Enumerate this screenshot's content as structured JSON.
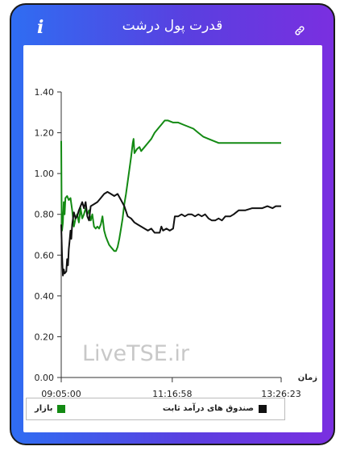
{
  "header": {
    "title": "قدرت پول درشت",
    "info_icon": "i",
    "link_icon": "link-icon"
  },
  "watermark": "LiveTSE.ir",
  "chart_data": {
    "type": "line",
    "title": "",
    "xlabel": "زمان",
    "ylabel": "",
    "ylim": [
      0,
      1.4
    ],
    "y_ticks": [
      "0.00",
      "0.20",
      "0.40",
      "0.60",
      "0.80",
      "1.00",
      "1.20",
      "1.40"
    ],
    "x_range": [
      "09:05:00",
      "13:26:23"
    ],
    "x_ticks": [
      "09:05:00",
      "11:16:58",
      "13:26:23"
    ],
    "grid": false,
    "legend_placement": "bottom",
    "series": [
      {
        "name": "بازار",
        "color": "#138a13",
        "points": [
          [
            "09:05:00",
            1.16
          ],
          [
            "09:05:30",
            0.82
          ],
          [
            "09:06:00",
            0.72
          ],
          [
            "09:07:00",
            0.76
          ],
          [
            "09:08:00",
            0.86
          ],
          [
            "09:09:00",
            0.8
          ],
          [
            "09:10:00",
            0.88
          ],
          [
            "09:12:00",
            0.89
          ],
          [
            "09:14:00",
            0.87
          ],
          [
            "09:16:00",
            0.88
          ],
          [
            "09:18:00",
            0.82
          ],
          [
            "09:20:00",
            0.74
          ],
          [
            "09:22:00",
            0.78
          ],
          [
            "09:24:00",
            0.8
          ],
          [
            "09:26:00",
            0.76
          ],
          [
            "09:28:00",
            0.83
          ],
          [
            "09:30:00",
            0.78
          ],
          [
            "09:32:00",
            0.8
          ],
          [
            "09:34:00",
            0.83
          ],
          [
            "09:36:00",
            0.8
          ],
          [
            "09:38:00",
            0.82
          ],
          [
            "09:40:00",
            0.77
          ],
          [
            "09:42:00",
            0.8
          ],
          [
            "09:44:00",
            0.74
          ],
          [
            "09:46:00",
            0.73
          ],
          [
            "09:48:00",
            0.74
          ],
          [
            "09:50:00",
            0.73
          ],
          [
            "09:52:00",
            0.75
          ],
          [
            "09:54:00",
            0.79
          ],
          [
            "09:56:00",
            0.72
          ],
          [
            "09:58:00",
            0.69
          ],
          [
            "10:00:00",
            0.67
          ],
          [
            "10:02:00",
            0.65
          ],
          [
            "10:04:00",
            0.64
          ],
          [
            "10:06:00",
            0.63
          ],
          [
            "10:08:00",
            0.62
          ],
          [
            "10:10:00",
            0.62
          ],
          [
            "10:12:00",
            0.64
          ],
          [
            "10:14:00",
            0.68
          ],
          [
            "10:16:00",
            0.73
          ],
          [
            "10:18:00",
            0.78
          ],
          [
            "10:20:00",
            0.85
          ],
          [
            "10:22:00",
            0.9
          ],
          [
            "10:24:00",
            0.96
          ],
          [
            "10:26:00",
            1.02
          ],
          [
            "10:28:00",
            1.08
          ],
          [
            "10:30:00",
            1.15
          ],
          [
            "10:31:00",
            1.17
          ],
          [
            "10:32:00",
            1.1
          ],
          [
            "10:35:00",
            1.12
          ],
          [
            "10:38:00",
            1.13
          ],
          [
            "10:40:00",
            1.11
          ],
          [
            "10:44:00",
            1.13
          ],
          [
            "10:48:00",
            1.15
          ],
          [
            "10:52:00",
            1.17
          ],
          [
            "10:56:00",
            1.2
          ],
          [
            "11:00:00",
            1.22
          ],
          [
            "11:04:00",
            1.24
          ],
          [
            "11:08:00",
            1.26
          ],
          [
            "11:12:00",
            1.26
          ],
          [
            "11:18:00",
            1.25
          ],
          [
            "11:24:00",
            1.25
          ],
          [
            "11:30:00",
            1.24
          ],
          [
            "11:36:00",
            1.23
          ],
          [
            "11:42:00",
            1.22
          ],
          [
            "11:48:00",
            1.2
          ],
          [
            "11:54:00",
            1.18
          ],
          [
            "12:00:00",
            1.17
          ],
          [
            "12:06:00",
            1.16
          ],
          [
            "12:12:00",
            1.15
          ],
          [
            "12:20:00",
            1.15
          ],
          [
            "12:40:00",
            1.15
          ],
          [
            "13:00:00",
            1.15
          ],
          [
            "13:26:23",
            1.15
          ]
        ]
      },
      {
        "name": "صندوق های درآمد ثابت",
        "color": "#111111",
        "points": [
          [
            "09:05:00",
            0.75
          ],
          [
            "09:06:00",
            0.6
          ],
          [
            "09:07:00",
            0.5
          ],
          [
            "09:08:00",
            0.53
          ],
          [
            "09:09:00",
            0.51
          ],
          [
            "09:11:00",
            0.52
          ],
          [
            "09:12:00",
            0.58
          ],
          [
            "09:13:00",
            0.55
          ],
          [
            "09:14:00",
            0.63
          ],
          [
            "09:15:00",
            0.67
          ],
          [
            "09:16:00",
            0.72
          ],
          [
            "09:17:00",
            0.68
          ],
          [
            "09:18:00",
            0.75
          ],
          [
            "09:20:00",
            0.81
          ],
          [
            "09:22:00",
            0.78
          ],
          [
            "09:24:00",
            0.79
          ],
          [
            "09:26:00",
            0.82
          ],
          [
            "09:28:00",
            0.84
          ],
          [
            "09:30:00",
            0.86
          ],
          [
            "09:32:00",
            0.83
          ],
          [
            "09:34:00",
            0.86
          ],
          [
            "09:36:00",
            0.79
          ],
          [
            "09:38:00",
            0.77
          ],
          [
            "09:40:00",
            0.84
          ],
          [
            "09:44:00",
            0.85
          ],
          [
            "09:48:00",
            0.86
          ],
          [
            "09:52:00",
            0.88
          ],
          [
            "09:56:00",
            0.9
          ],
          [
            "10:00:00",
            0.91
          ],
          [
            "10:04:00",
            0.9
          ],
          [
            "10:08:00",
            0.89
          ],
          [
            "10:12:00",
            0.9
          ],
          [
            "10:16:00",
            0.87
          ],
          [
            "10:20:00",
            0.84
          ],
          [
            "10:24:00",
            0.79
          ],
          [
            "10:28:00",
            0.78
          ],
          [
            "10:32:00",
            0.76
          ],
          [
            "10:36:00",
            0.75
          ],
          [
            "10:40:00",
            0.74
          ],
          [
            "10:44:00",
            0.73
          ],
          [
            "10:48:00",
            0.72
          ],
          [
            "10:52:00",
            0.73
          ],
          [
            "10:56:00",
            0.71
          ],
          [
            "11:00:00",
            0.71
          ],
          [
            "11:02:00",
            0.71
          ],
          [
            "11:04:00",
            0.74
          ],
          [
            "11:06:00",
            0.72
          ],
          [
            "11:10:00",
            0.73
          ],
          [
            "11:14:00",
            0.72
          ],
          [
            "11:18:00",
            0.73
          ],
          [
            "11:20:00",
            0.79
          ],
          [
            "11:24:00",
            0.79
          ],
          [
            "11:28:00",
            0.8
          ],
          [
            "11:32:00",
            0.79
          ],
          [
            "11:36:00",
            0.8
          ],
          [
            "11:40:00",
            0.8
          ],
          [
            "11:44:00",
            0.79
          ],
          [
            "11:48:00",
            0.8
          ],
          [
            "11:52:00",
            0.79
          ],
          [
            "11:56:00",
            0.8
          ],
          [
            "12:00:00",
            0.78
          ],
          [
            "12:04:00",
            0.77
          ],
          [
            "12:08:00",
            0.77
          ],
          [
            "12:12:00",
            0.78
          ],
          [
            "12:16:00",
            0.77
          ],
          [
            "12:20:00",
            0.79
          ],
          [
            "12:26:00",
            0.79
          ],
          [
            "12:30:00",
            0.8
          ],
          [
            "12:36:00",
            0.82
          ],
          [
            "12:44:00",
            0.82
          ],
          [
            "12:52:00",
            0.83
          ],
          [
            "13:04:00",
            0.83
          ],
          [
            "13:10:00",
            0.84
          ],
          [
            "13:16:00",
            0.83
          ],
          [
            "13:20:00",
            0.84
          ],
          [
            "13:26:23",
            0.84
          ]
        ]
      }
    ]
  }
}
